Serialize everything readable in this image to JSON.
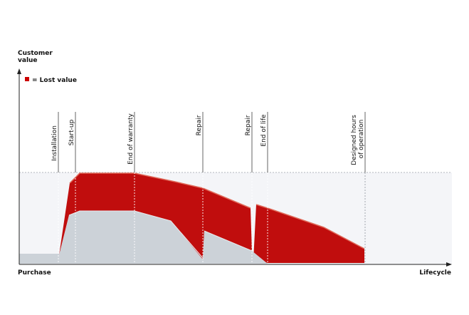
{
  "y_axis_label": [
    "Customer",
    "value"
  ],
  "x_axis_start_label": "Purchase",
  "x_axis_end_label": "Lifecycle",
  "legend": {
    "label": "= Lost value",
    "swatch_color": "#cc0000"
  },
  "milestones": [
    {
      "label": [
        "Installation"
      ]
    },
    {
      "label": [
        "Start-up"
      ]
    },
    {
      "label": [
        "End of warranty"
      ]
    },
    {
      "label": [
        "Repair"
      ]
    },
    {
      "label": [
        "Repair"
      ]
    },
    {
      "label": [
        "End of life"
      ]
    },
    {
      "label": [
        "Designed hours",
        "of operation"
      ]
    }
  ],
  "colors": {
    "lost_value": "#c00d0d",
    "lost_value_edge": "#e06a5a",
    "delivered_value": "#ccd2d8",
    "potential_band": "#f4f5f8",
    "axis": "#222222",
    "milestone_line": "#9aa0a6"
  }
}
